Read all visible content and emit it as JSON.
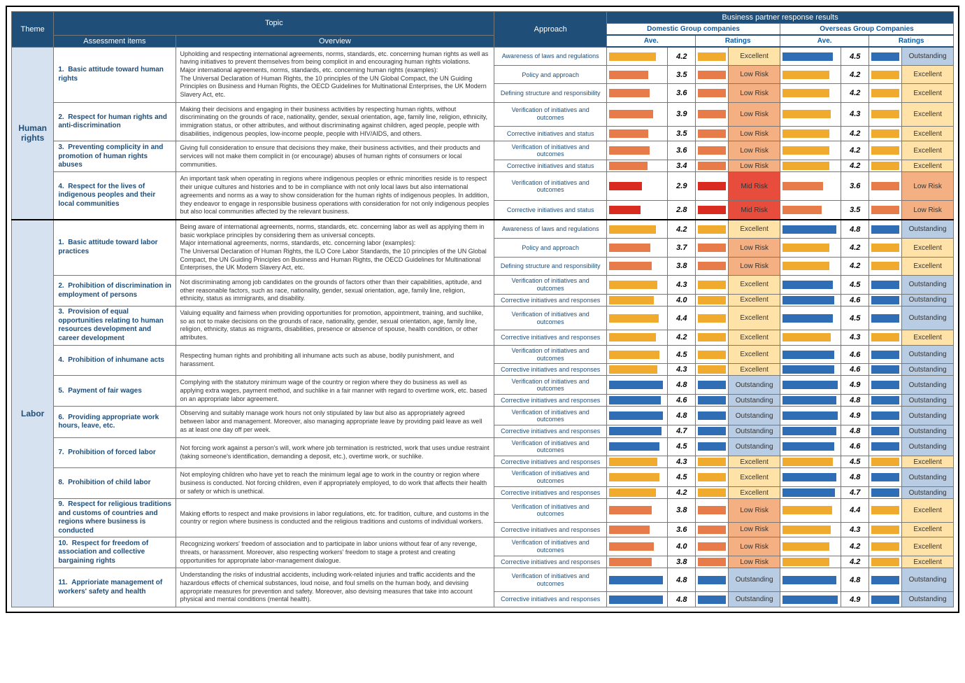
{
  "maxScore": 5,
  "headers": {
    "theme": "Theme",
    "topic": "Topic",
    "approach": "Approach",
    "responseResults": "Business partner response results",
    "domestic": "Domestic Group companies",
    "overseas": "Overseas Group Companies",
    "assessment": "Assessment items",
    "overview": "Overview",
    "ave": "Ave.",
    "ratings": "Ratings"
  },
  "ratingColors": {
    "Outstanding": {
      "bg": "#b8cce4",
      "bar": "#2f6eb5"
    },
    "Excellent": {
      "bg": "#ffe2a8",
      "bar": "#f0ab2e"
    },
    "Low Risk": {
      "bg": "#f4b082",
      "bar": "#e87b4a"
    },
    "Mid Risk": {
      "bg": "#e84c3d",
      "bar": "#d92b1f"
    }
  },
  "themes": [
    {
      "name": "Human rights",
      "items": [
        {
          "num": "1.",
          "title": "Basic attitude toward human rights",
          "overview": "Upholding and respecting international agreements, norms, standards, etc. concerning human rights as well as having initiatives to prevent themselves from being complicit in and encouraging human rights violations.\nMajor international agreements, norms, standards, etc. concerning human rights (examples):\nThe Universal Declaration of Human Rights, the 10 principles of the UN Global Compact, the UN Guiding Principles on Business and Human Rights, the OECD Guidelines for Multinational Enterprises, the UK Modern Slavery Act, etc.",
          "rows": [
            {
              "approach": "Awareness of laws and regulations",
              "d": {
                "v": 4.2,
                "r": "Excellent"
              },
              "o": {
                "v": 4.5,
                "r": "Outstanding"
              }
            },
            {
              "approach": "Policy and approach",
              "d": {
                "v": 3.5,
                "r": "Low Risk"
              },
              "o": {
                "v": 4.2,
                "r": "Excellent"
              }
            },
            {
              "approach": "Defining structure and responsibility",
              "d": {
                "v": 3.6,
                "r": "Low Risk"
              },
              "o": {
                "v": 4.2,
                "r": "Excellent"
              }
            }
          ]
        },
        {
          "num": "2.",
          "title": "Respect for human rights and anti-discrimination",
          "overview": "Making their decisions and engaging in their business activities by respecting human rights, without discriminating on the grounds of race, nationality, gender, sexual orientation, age, family line, religion, ethnicity, immigration status, or other attributes, and without discriminating against children, aged people, people with disabilities, indigenous peoples, low-income people, people with HIV/AIDS, and others.",
          "rows": [
            {
              "approach": "Verification of initiatives and outcomes",
              "d": {
                "v": 3.9,
                "r": "Low Risk"
              },
              "o": {
                "v": 4.3,
                "r": "Excellent"
              }
            },
            {
              "approach": "Corrective initiatives and status",
              "d": {
                "v": 3.5,
                "r": "Low Risk"
              },
              "o": {
                "v": 4.2,
                "r": "Excellent"
              }
            }
          ]
        },
        {
          "num": "3.",
          "title": "Preventing complicity in and promotion of human rights abuses",
          "overview": "Giving full consideration to ensure that decisions they make, their business activities, and their products and services will not make them complicit in (or encourage) abuses of human rights of consumers or local communities.",
          "rows": [
            {
              "approach": "Verification of initiatives and outcomes",
              "d": {
                "v": 3.6,
                "r": "Low Risk"
              },
              "o": {
                "v": 4.2,
                "r": "Excellent"
              }
            },
            {
              "approach": "Corrective initiatives and status",
              "d": {
                "v": 3.4,
                "r": "Low Risk"
              },
              "o": {
                "v": 4.2,
                "r": "Excellent"
              }
            }
          ]
        },
        {
          "num": "4.",
          "title": "Respect for the lives of indigenous peoples and their local communities",
          "overview": "An important task when operating in regions where indigenous peoples or ethnic minorities reside is to respect their unique cultures and histories and to be in compliance with not only local laws but also international agreements and norms as a way to show consideration for the human rights of indigenous peoples. In addition, they endeavor to engage in responsible business operations with consideration for not only indigenous peoples but also local communities affected by the relevant business.",
          "rows": [
            {
              "approach": "Verification of initiatives and outcomes",
              "d": {
                "v": 2.9,
                "r": "Mid Risk"
              },
              "o": {
                "v": 3.6,
                "r": "Low Risk"
              }
            },
            {
              "approach": "Corrective initiatives and status",
              "d": {
                "v": 2.8,
                "r": "Mid Risk"
              },
              "o": {
                "v": 3.5,
                "r": "Low Risk"
              }
            }
          ]
        }
      ]
    },
    {
      "name": "Labor",
      "items": [
        {
          "num": "1.",
          "title": "Basic attitude toward labor practices",
          "overview": "Being aware of international agreements, norms, standards, etc. concerning labor as well as applying them in basic workplace principles by considering them as universal concepts.\nMajor international agreements, norms, standards, etc. concerning labor (examples):\nThe Universal Declaration of Human Rights, the ILO Core Labor Standards, the 10 principles of the UN Global Compact, the UN Guiding Principles on Business and Human Rights, the OECD Guidelines for Multinational Enterprises, the UK Modern Slavery Act, etc.",
          "rows": [
            {
              "approach": "Awareness of laws and regulations",
              "d": {
                "v": 4.2,
                "r": "Excellent"
              },
              "o": {
                "v": 4.8,
                "r": "Outstanding"
              }
            },
            {
              "approach": "Policy and approach",
              "d": {
                "v": 3.7,
                "r": "Low Risk"
              },
              "o": {
                "v": 4.2,
                "r": "Excellent"
              }
            },
            {
              "approach": "Defining structure and responsibility",
              "d": {
                "v": 3.8,
                "r": "Low Risk"
              },
              "o": {
                "v": 4.2,
                "r": "Excellent"
              }
            }
          ]
        },
        {
          "num": "2.",
          "title": "Prohibition of discrimination in employment of persons",
          "overview": "Not discriminating among job candidates on the grounds of factors other than their capabilities, aptitude, and other reasonable factors, such as race, nationality, gender, sexual orientation, age, family line, religion, ethnicity, status as immigrants, and disability.",
          "rows": [
            {
              "approach": "Verification of initiatives and outcomes",
              "d": {
                "v": 4.3,
                "r": "Excellent"
              },
              "o": {
                "v": 4.5,
                "r": "Outstanding"
              }
            },
            {
              "approach": "Corrective initiatives and responses",
              "d": {
                "v": 4.0,
                "r": "Excellent"
              },
              "o": {
                "v": 4.6,
                "r": "Outstanding"
              }
            }
          ]
        },
        {
          "num": "3.",
          "title": "Provision of equal opportunities relating to human resources development and career development",
          "overview": "Valuing equality and fairness when providing opportunities for promotion, appointment, training, and suchlike, so as not to make decisions on the grounds of race, nationality, gender, sexual orientation, age, family line, religion, ethnicity, status as migrants, disabilities, presence or absence of spouse, health condition, or other attributes.",
          "rows": [
            {
              "approach": "Verification of initiatives and outcomes",
              "d": {
                "v": 4.4,
                "r": "Excellent"
              },
              "o": {
                "v": 4.5,
                "r": "Outstanding"
              }
            },
            {
              "approach": "Corrective initiatives and responses",
              "d": {
                "v": 4.2,
                "r": "Excellent"
              },
              "o": {
                "v": 4.3,
                "r": "Excellent"
              }
            }
          ]
        },
        {
          "num": "4.",
          "title": "Prohibition of inhumane acts",
          "overview": "Respecting human rights and prohibiting all inhumane acts such as abuse, bodily punishment, and harassment.",
          "rows": [
            {
              "approach": "Verification of initiatives and outcomes",
              "d": {
                "v": 4.5,
                "r": "Excellent"
              },
              "o": {
                "v": 4.6,
                "r": "Outstanding"
              }
            },
            {
              "approach": "Corrective initiatives and responses",
              "d": {
                "v": 4.3,
                "r": "Excellent"
              },
              "o": {
                "v": 4.6,
                "r": "Outstanding"
              }
            }
          ]
        },
        {
          "num": "5.",
          "title": "Payment of fair wages",
          "overview": "Complying with the statutory minimum wage of the country or region where they do business as well as applying extra wages, payment method, and suchlike in a fair manner with regard to overtime work, etc. based on an appropriate labor agreement.",
          "rows": [
            {
              "approach": "Verification of initiatives and outcomes",
              "d": {
                "v": 4.8,
                "r": "Outstanding"
              },
              "o": {
                "v": 4.9,
                "r": "Outstanding"
              }
            },
            {
              "approach": "Corrective initiatives and responses",
              "d": {
                "v": 4.6,
                "r": "Outstanding"
              },
              "o": {
                "v": 4.8,
                "r": "Outstanding"
              }
            }
          ]
        },
        {
          "num": "6.",
          "title": "Providing appropriate work hours, leave, etc.",
          "overview": "Observing and suitably manage work hours not only stipulated by law but also as appropriately agreed between labor and management. Moreover, also managing appropriate leave by providing paid leave as well as at least one day off per week.",
          "rows": [
            {
              "approach": "Verification of initiatives and outcomes",
              "d": {
                "v": 4.8,
                "r": "Outstanding"
              },
              "o": {
                "v": 4.9,
                "r": "Outstanding"
              }
            },
            {
              "approach": "Corrective initiatives and responses",
              "d": {
                "v": 4.7,
                "r": "Outstanding"
              },
              "o": {
                "v": 4.8,
                "r": "Outstanding"
              }
            }
          ]
        },
        {
          "num": "7.",
          "title": "Prohibition of forced labor",
          "overview": "Not forcing work against a person's will, work where job termination is restricted, work that uses undue restraint (taking someone's identification, demanding a deposit, etc.), overtime work, or suchlike.",
          "rows": [
            {
              "approach": "Verification of initiatives and outcomes",
              "d": {
                "v": 4.5,
                "r": "Outstanding"
              },
              "o": {
                "v": 4.6,
                "r": "Outstanding"
              }
            },
            {
              "approach": "Corrective initiatives and responses",
              "d": {
                "v": 4.3,
                "r": "Excellent"
              },
              "o": {
                "v": 4.5,
                "r": "Excellent"
              }
            }
          ]
        },
        {
          "num": "8.",
          "title": "Prohibition of child labor",
          "overview": "Not employing children who have yet to reach the minimum legal age to work in the country or region where business is conducted. Not forcing children, even if appropriately employed, to do work that affects their health or safety or which is unethical.",
          "rows": [
            {
              "approach": "Verification of initiatives and outcomes",
              "d": {
                "v": 4.5,
                "r": "Excellent"
              },
              "o": {
                "v": 4.8,
                "r": "Outstanding"
              }
            },
            {
              "approach": "Corrective initiatives and responses",
              "d": {
                "v": 4.2,
                "r": "Excellent"
              },
              "o": {
                "v": 4.7,
                "r": "Outstanding"
              }
            }
          ]
        },
        {
          "num": "9.",
          "title": "Respect for religious traditions and customs of countries and regions where business is conducted",
          "overview": "Making efforts to respect and make provisions in labor regulations, etc. for tradition, culture, and customs in the country or region where business is conducted and the religious traditions and customs of individual workers.",
          "rows": [
            {
              "approach": "Verification of initiatives and outcomes",
              "d": {
                "v": 3.8,
                "r": "Low Risk"
              },
              "o": {
                "v": 4.4,
                "r": "Excellent"
              }
            },
            {
              "approach": "Corrective initiatives and responses",
              "d": {
                "v": 3.6,
                "r": "Low Risk"
              },
              "o": {
                "v": 4.3,
                "r": "Excellent"
              }
            }
          ]
        },
        {
          "num": "10.",
          "title": "Respect for freedom of association and collective bargaining rights",
          "overview": "Recognizing workers' freedom of association and to participate in labor unions without fear of any revenge, threats, or harassment. Moreover, also respecting workers' freedom to stage a protest and creating opportunities for appropriate labor-management dialogue.",
          "rows": [
            {
              "approach": "Verification of initiatives and outcomes",
              "d": {
                "v": 4.0,
                "r": "Low Risk"
              },
              "o": {
                "v": 4.2,
                "r": "Excellent"
              }
            },
            {
              "approach": "Corrective initiatives and responses",
              "d": {
                "v": 3.8,
                "r": "Low Risk"
              },
              "o": {
                "v": 4.2,
                "r": "Excellent"
              }
            }
          ]
        },
        {
          "num": "11.",
          "title": "Apprioriate management of workers' safety and health",
          "overview": "Understanding the risks of industrial accidents, including work-related injuries and traffic accidents and the hazardous effects of chemical substances, loud noise, and foul smells on the human body, and devising appropriate measures for prevention and safety. Moreover, also devising measures that take into account physical and mental conditions (mental health).",
          "rows": [
            {
              "approach": "Verification of initiatives and outcomes",
              "d": {
                "v": 4.8,
                "r": "Outstanding"
              },
              "o": {
                "v": 4.8,
                "r": "Outstanding"
              }
            },
            {
              "approach": "Corrective initiatives and responses",
              "d": {
                "v": 4.8,
                "r": "Outstanding"
              },
              "o": {
                "v": 4.9,
                "r": "Outstanding"
              }
            }
          ]
        }
      ]
    }
  ]
}
